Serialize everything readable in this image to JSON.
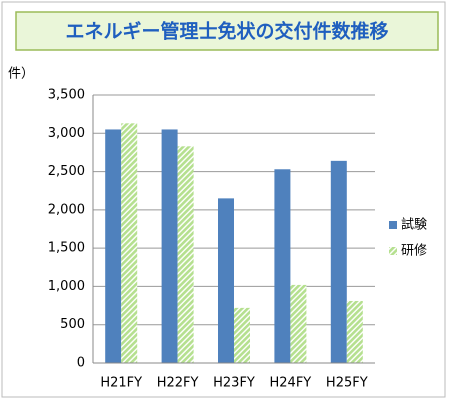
{
  "chart_data": {
    "type": "bar",
    "title": "エネルギー管理士免状の交付件数推移",
    "y_label": "件）",
    "categories": [
      "H21FY",
      "H22FY",
      "H23FY",
      "H24FY",
      "H25FY"
    ],
    "series": [
      {
        "name": "試験",
        "color": "#4f81bd",
        "values": [
          3050,
          3050,
          2150,
          2530,
          2640
        ]
      },
      {
        "name": "研修",
        "color": "#b5e08f",
        "values": [
          3130,
          2830,
          720,
          1020,
          810
        ]
      }
    ],
    "ylim": [
      0,
      3500
    ],
    "yticks": [
      0,
      {
        "value": 500,
        "label": "500"
      },
      {
        "value": 1000,
        "label": "1,000"
      },
      {
        "value": 1500,
        "label": "1,500"
      },
      {
        "value": 2000,
        "label": "2,000"
      },
      {
        "value": 2500,
        "label": "2,500"
      },
      {
        "value": 3000,
        "label": "3,000"
      },
      {
        "value": 3500,
        "label": "3,500"
      }
    ],
    "grid": true,
    "legend": "right"
  }
}
